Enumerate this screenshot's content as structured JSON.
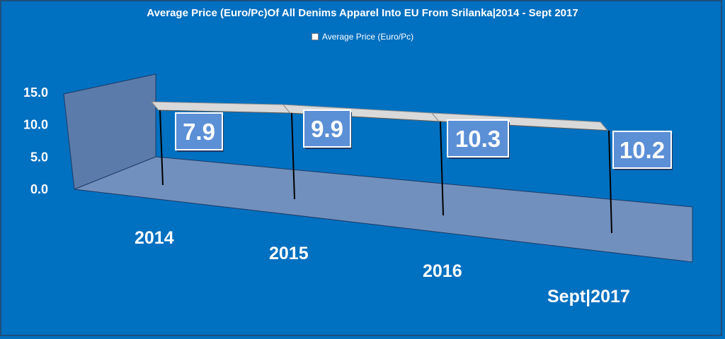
{
  "chart_data": {
    "type": "line",
    "title": "Average Price (Euro/Pc)Of All Denims Apparel Into EU From Srilanka|2014 - Sept 2017",
    "categories": [
      "2014",
      "2015",
      "2016",
      "Sept|2017"
    ],
    "series": [
      {
        "name": "Average Price (Euro/Pc)",
        "values": [
          7.9,
          9.9,
          10.3,
          10.2
        ]
      }
    ],
    "data_labels": [
      "7.9",
      "9.9",
      "10.3",
      "10.2"
    ],
    "y_ticks": [
      "0.0",
      "5.0",
      "10.0",
      "15.0"
    ],
    "ylim": [
      0,
      15
    ],
    "xlabel": "",
    "ylabel": "",
    "legend_position": "top",
    "grid": false,
    "style": "3d-ribbon",
    "colors": {
      "background": "#0070c0",
      "wall": "#5b7bab",
      "floor": "#7190bd",
      "ribbon": "#d9d9d9",
      "label_box": "#5b8fd6",
      "text": "#ffffff"
    }
  }
}
